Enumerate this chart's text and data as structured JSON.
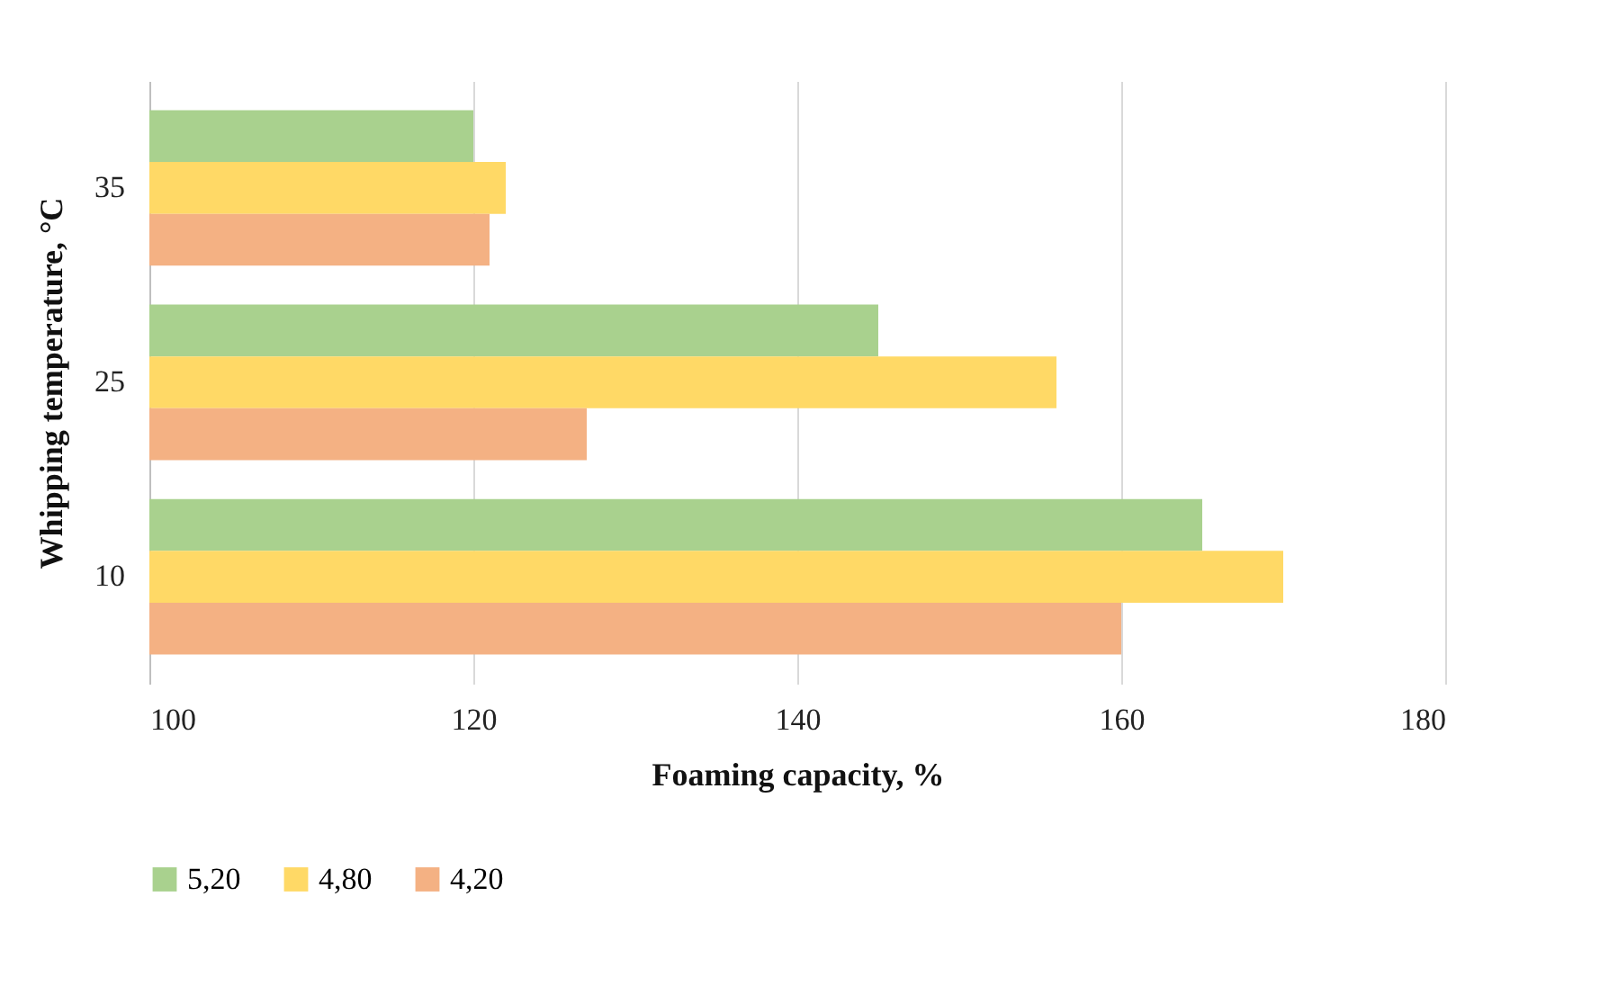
{
  "chart_data": {
    "type": "bar",
    "orientation": "horizontal",
    "xlabel": "Foaming capacity, %",
    "ylabel": "Whipping temperature, °C",
    "categories": [
      "35",
      "25",
      "10"
    ],
    "series": [
      {
        "name": "5,20",
        "color": "#a9d18e",
        "values": [
          120,
          145,
          165
        ]
      },
      {
        "name": "4,80",
        "color": "#ffd966",
        "values": [
          122,
          156,
          170
        ]
      },
      {
        "name": "4,20",
        "color": "#f4b183",
        "values": [
          121,
          127,
          160
        ]
      }
    ],
    "xlim": [
      100,
      180
    ],
    "xticks": [
      100,
      120,
      140,
      160,
      180
    ],
    "grid": "x",
    "legend": "bottom"
  }
}
